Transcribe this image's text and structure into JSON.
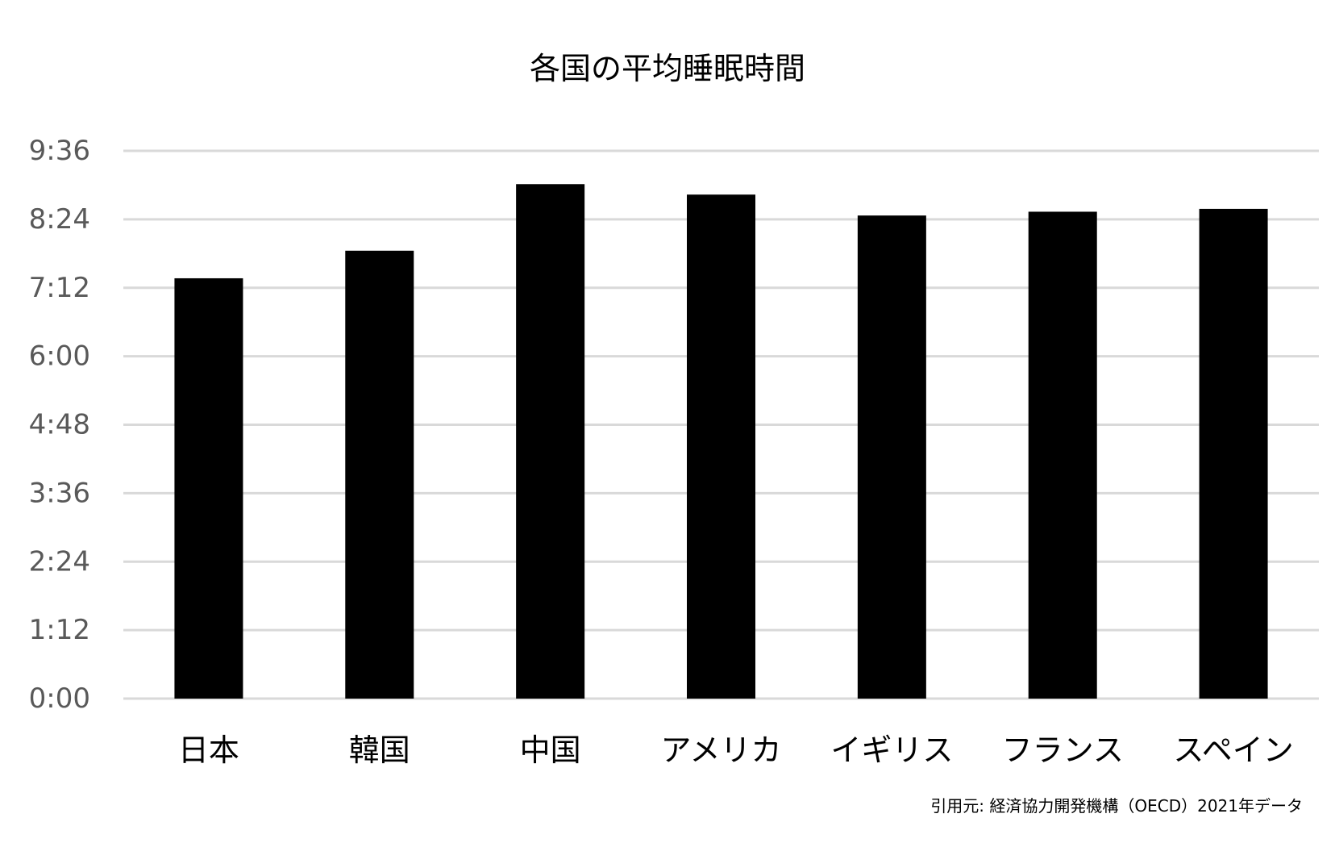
{
  "chart_data": {
    "type": "bar",
    "title": "各国の平均睡眠時間",
    "categories": [
      "日本",
      "韓国",
      "中国",
      "アメリカ",
      "イギリス",
      "フランス",
      "スペイン"
    ],
    "values_minutes": [
      442,
      471,
      541,
      530,
      508,
      512,
      515
    ],
    "yticks": [
      "0:00",
      "1:12",
      "2:24",
      "3:36",
      "4:48",
      "6:00",
      "7:12",
      "8:24",
      "9:36"
    ],
    "ylim_minutes": [
      0,
      576
    ],
    "xlabel": "",
    "ylabel": "",
    "grid": true,
    "legend": "none",
    "colors": {
      "bar": "#000000",
      "grid": "#d9d9d9",
      "tick_label": "#595959",
      "category_label": "#000000"
    }
  },
  "source_note": "引用元: 経済協力開発機構（OECD）2021年データ"
}
